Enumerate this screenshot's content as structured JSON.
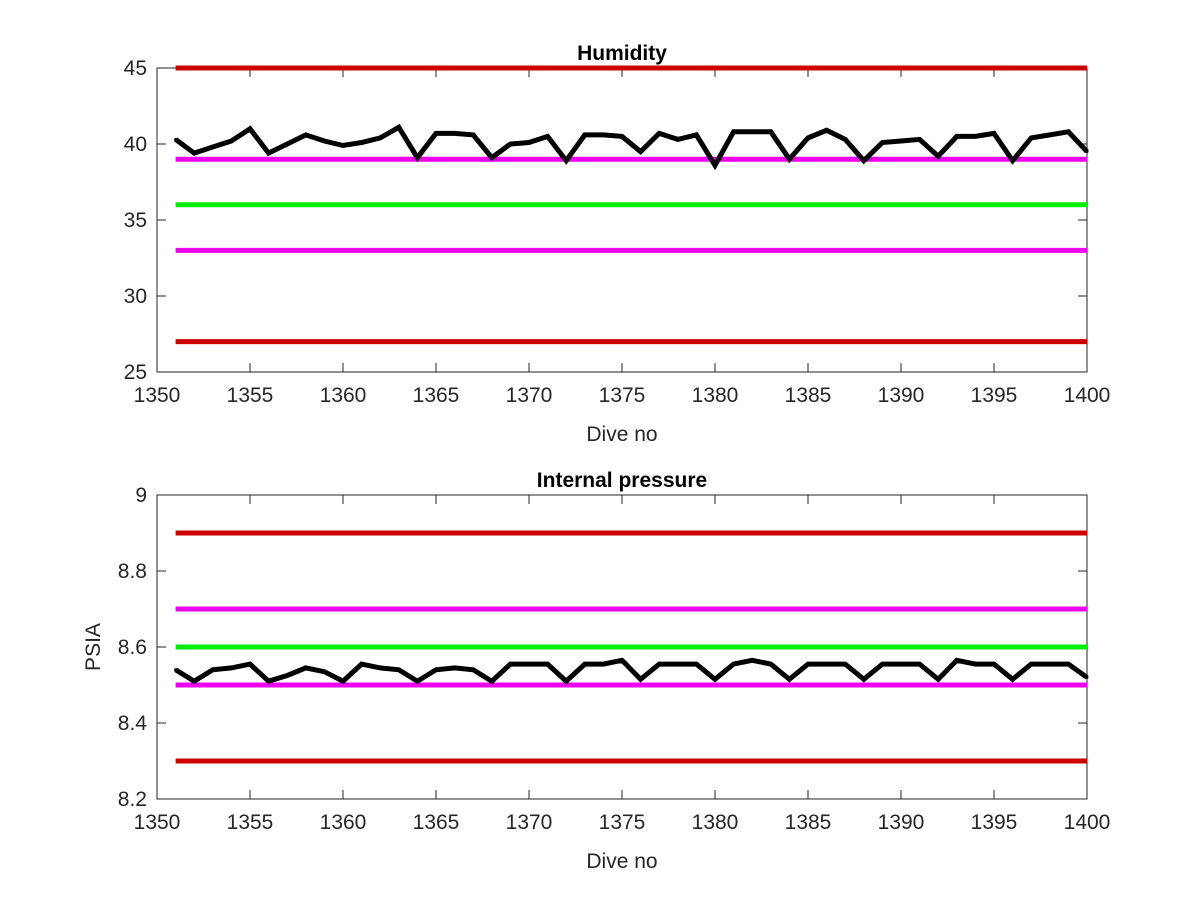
{
  "chart_data": [
    {
      "type": "line",
      "title": "Humidity",
      "xlabel": "Dive no",
      "ylabel": "",
      "xlim": [
        1350,
        1400
      ],
      "ylim": [
        25,
        45
      ],
      "xticks": [
        "1350",
        "1355",
        "1360",
        "1365",
        "1370",
        "1375",
        "1380",
        "1385",
        "1390",
        "1395",
        "1400"
      ],
      "yticks": [
        "25",
        "30",
        "35",
        "40",
        "45"
      ],
      "grid": false,
      "thresholds": [
        {
          "value": 45,
          "color": "#cc0000"
        },
        {
          "value": 39,
          "color": "#ee00ee"
        },
        {
          "value": 36,
          "color": "#00ee00"
        },
        {
          "value": 33,
          "color": "#ee00ee"
        },
        {
          "value": 27,
          "color": "#cc0000"
        }
      ],
      "series": [
        {
          "color": "#000000",
          "x": [
            1351,
            1352,
            1353,
            1354,
            1355,
            1356,
            1357,
            1358,
            1359,
            1360,
            1361,
            1362,
            1363,
            1364,
            1365,
            1366,
            1367,
            1368,
            1369,
            1370,
            1371,
            1372,
            1373,
            1374,
            1375,
            1376,
            1377,
            1378,
            1379,
            1380,
            1381,
            1382,
            1383,
            1384,
            1385,
            1386,
            1387,
            1388,
            1389,
            1390,
            1391,
            1392,
            1393,
            1394,
            1395,
            1396,
            1397,
            1398,
            1399,
            1400
          ],
          "values": [
            40.3,
            39.4,
            39.8,
            40.2,
            41.0,
            39.4,
            40.0,
            40.6,
            40.2,
            39.9,
            40.1,
            40.4,
            41.1,
            39.1,
            40.7,
            40.7,
            40.6,
            39.1,
            40.0,
            40.1,
            40.5,
            38.9,
            40.6,
            40.6,
            40.5,
            39.5,
            40.7,
            40.3,
            40.6,
            38.6,
            40.8,
            40.8,
            40.8,
            39.0,
            40.4,
            40.9,
            40.3,
            38.9,
            40.1,
            40.2,
            40.3,
            39.2,
            40.5,
            40.5,
            40.7,
            38.9,
            40.4,
            40.6,
            40.8,
            39.5
          ]
        }
      ]
    },
    {
      "type": "line",
      "title": "Internal pressure",
      "xlabel": "Dive no",
      "ylabel": "PSIA",
      "xlim": [
        1350,
        1400
      ],
      "ylim": [
        8.2,
        9
      ],
      "xticks": [
        "1350",
        "1355",
        "1360",
        "1365",
        "1370",
        "1375",
        "1380",
        "1385",
        "1390",
        "1395",
        "1400"
      ],
      "yticks": [
        "8.2",
        "8.4",
        "8.6",
        "8.8",
        "9"
      ],
      "grid": false,
      "thresholds": [
        {
          "value": 8.9,
          "color": "#cc0000"
        },
        {
          "value": 8.7,
          "color": "#ee00ee"
        },
        {
          "value": 8.6,
          "color": "#00ee00"
        },
        {
          "value": 8.5,
          "color": "#ee00ee"
        },
        {
          "value": 8.3,
          "color": "#cc0000"
        }
      ],
      "series": [
        {
          "color": "#000000",
          "x": [
            1351,
            1352,
            1353,
            1354,
            1355,
            1356,
            1357,
            1358,
            1359,
            1360,
            1361,
            1362,
            1363,
            1364,
            1365,
            1366,
            1367,
            1368,
            1369,
            1370,
            1371,
            1372,
            1373,
            1374,
            1375,
            1376,
            1377,
            1378,
            1379,
            1380,
            1381,
            1382,
            1383,
            1384,
            1385,
            1386,
            1387,
            1388,
            1389,
            1390,
            1391,
            1392,
            1393,
            1394,
            1395,
            1396,
            1397,
            1398,
            1399,
            1400
          ],
          "values": [
            8.54,
            8.51,
            8.54,
            8.545,
            8.555,
            8.51,
            8.525,
            8.545,
            8.535,
            8.51,
            8.555,
            8.545,
            8.54,
            8.51,
            8.54,
            8.545,
            8.54,
            8.51,
            8.555,
            8.555,
            8.555,
            8.51,
            8.555,
            8.555,
            8.565,
            8.515,
            8.555,
            8.555,
            8.555,
            8.515,
            8.555,
            8.565,
            8.555,
            8.515,
            8.555,
            8.555,
            8.555,
            8.515,
            8.555,
            8.555,
            8.555,
            8.515,
            8.565,
            8.555,
            8.555,
            8.515,
            8.555,
            8.555,
            8.555,
            8.52
          ]
        }
      ]
    }
  ]
}
